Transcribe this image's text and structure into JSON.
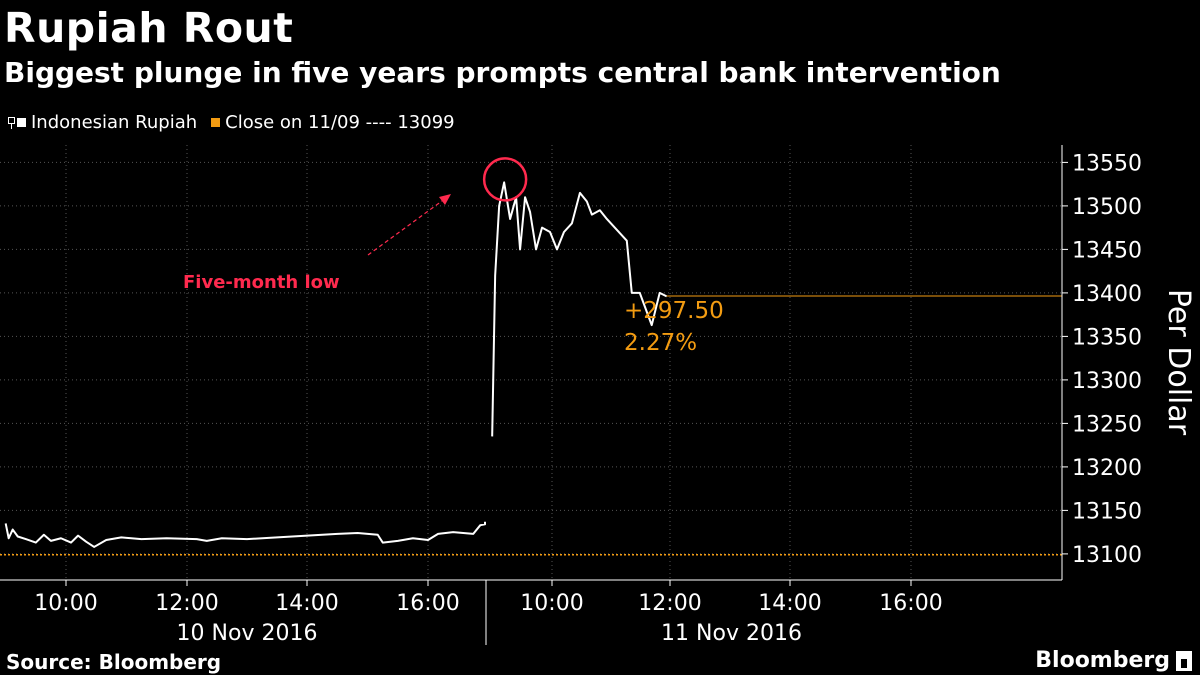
{
  "header": {
    "title": "Rupiah Rout",
    "subtitle": "Biggest plunge in five years prompts central bank intervention"
  },
  "legend": {
    "series_label": "Indonesian Rupiah",
    "close_label": "Close on 11/09 ---- 13099"
  },
  "footer": {
    "source": "Source: Bloomberg",
    "brand": "Bloomberg"
  },
  "colors": {
    "series": "#ffffff",
    "close_line": "#f39c12",
    "annotation": "#ff2a4e",
    "grid": "#555555"
  },
  "chart_data": {
    "type": "line",
    "title": "Rupiah Rout",
    "subtitle": "Biggest plunge in five years prompts central bank intervention",
    "ylabel": "Per Dollar",
    "ylim": [
      13070,
      13570
    ],
    "yticks": [
      13100,
      13150,
      13200,
      13250,
      13300,
      13350,
      13400,
      13450,
      13500,
      13550
    ],
    "grid": true,
    "legend_position": "top-left",
    "reference_line": {
      "label": "Close on 11/09",
      "value": 13099
    },
    "x_sessions": [
      {
        "date": "10 Nov 2016",
        "range": [
          "09:00",
          "17:00"
        ],
        "ticks": [
          "10:00",
          "12:00",
          "14:00",
          "16:00"
        ]
      },
      {
        "date": "11 Nov 2016",
        "range": [
          "09:00",
          "17:00"
        ],
        "ticks": [
          "10:00",
          "12:00",
          "14:00",
          "16:00"
        ]
      }
    ],
    "series": [
      {
        "name": "Indonesian Rupiah",
        "points": [
          [
            "10 Nov 2016",
            "09:00",
            13135
          ],
          [
            "10 Nov 2016",
            "09:03",
            13118
          ],
          [
            "10 Nov 2016",
            "09:07",
            13128
          ],
          [
            "10 Nov 2016",
            "09:12",
            13120
          ],
          [
            "10 Nov 2016",
            "09:20",
            13117
          ],
          [
            "10 Nov 2016",
            "09:30",
            13113
          ],
          [
            "10 Nov 2016",
            "09:38",
            13122
          ],
          [
            "10 Nov 2016",
            "09:45",
            13115
          ],
          [
            "10 Nov 2016",
            "09:55",
            13118
          ],
          [
            "10 Nov 2016",
            "10:05",
            13113
          ],
          [
            "10 Nov 2016",
            "10:12",
            13121
          ],
          [
            "10 Nov 2016",
            "10:20",
            13114
          ],
          [
            "10 Nov 2016",
            "10:28",
            13108
          ],
          [
            "10 Nov 2016",
            "10:40",
            13116
          ],
          [
            "10 Nov 2016",
            "10:55",
            13119
          ],
          [
            "10 Nov 2016",
            "11:15",
            13117
          ],
          [
            "10 Nov 2016",
            "11:40",
            13118
          ],
          [
            "10 Nov 2016",
            "12:10",
            13117
          ],
          [
            "10 Nov 2016",
            "12:20",
            13115
          ],
          [
            "10 Nov 2016",
            "12:35",
            13118
          ],
          [
            "10 Nov 2016",
            "13:00",
            13117
          ],
          [
            "10 Nov 2016",
            "13:30",
            13119
          ],
          [
            "10 Nov 2016",
            "14:00",
            13121
          ],
          [
            "10 Nov 2016",
            "14:30",
            13123
          ],
          [
            "10 Nov 2016",
            "14:50",
            13124
          ],
          [
            "10 Nov 2016",
            "15:10",
            13122
          ],
          [
            "10 Nov 2016",
            "15:15",
            13113
          ],
          [
            "10 Nov 2016",
            "15:30",
            13115
          ],
          [
            "10 Nov 2016",
            "15:45",
            13118
          ],
          [
            "10 Nov 2016",
            "16:00",
            13116
          ],
          [
            "10 Nov 2016",
            "16:10",
            13123
          ],
          [
            "10 Nov 2016",
            "16:25",
            13125
          ],
          [
            "10 Nov 2016",
            "16:45",
            13123
          ],
          [
            "10 Nov 2016",
            "16:52",
            13133
          ],
          [
            "10 Nov 2016",
            "16:57",
            13134
          ],
          [
            "10 Nov 2016",
            "17:00",
            13137
          ],
          [
            "11 Nov 2016",
            "09:00",
            13235
          ],
          [
            "11 Nov 2016",
            "09:03",
            13420
          ],
          [
            "11 Nov 2016",
            "09:07",
            13500
          ],
          [
            "11 Nov 2016",
            "09:12",
            13527
          ],
          [
            "11 Nov 2016",
            "09:18",
            13485
          ],
          [
            "11 Nov 2016",
            "09:24",
            13510
          ],
          [
            "11 Nov 2016",
            "09:28",
            13450
          ],
          [
            "11 Nov 2016",
            "09:33",
            13510
          ],
          [
            "11 Nov 2016",
            "09:38",
            13493
          ],
          [
            "11 Nov 2016",
            "09:44",
            13450
          ],
          [
            "11 Nov 2016",
            "09:50",
            13475
          ],
          [
            "11 Nov 2016",
            "09:58",
            13470
          ],
          [
            "11 Nov 2016",
            "10:05",
            13450
          ],
          [
            "11 Nov 2016",
            "10:12",
            13470
          ],
          [
            "11 Nov 2016",
            "10:20",
            13480
          ],
          [
            "11 Nov 2016",
            "10:28",
            13515
          ],
          [
            "11 Nov 2016",
            "10:35",
            13505
          ],
          [
            "11 Nov 2016",
            "10:40",
            13490
          ],
          [
            "11 Nov 2016",
            "10:48",
            13495
          ],
          [
            "11 Nov 2016",
            "10:55",
            13485
          ],
          [
            "11 Nov 2016",
            "11:15",
            13460
          ],
          [
            "11 Nov 2016",
            "11:20",
            13400
          ],
          [
            "11 Nov 2016",
            "11:28",
            13400
          ],
          [
            "11 Nov 2016",
            "11:40",
            13363
          ],
          [
            "11 Nov 2016",
            "11:48",
            13400
          ],
          [
            "11 Nov 2016",
            "11:55",
            13396
          ]
        ],
        "last_value": 13396.5
      }
    ],
    "annotations": {
      "low_label": "Five-month low",
      "change_value": "+297.50",
      "change_percent": "2.27%"
    }
  }
}
